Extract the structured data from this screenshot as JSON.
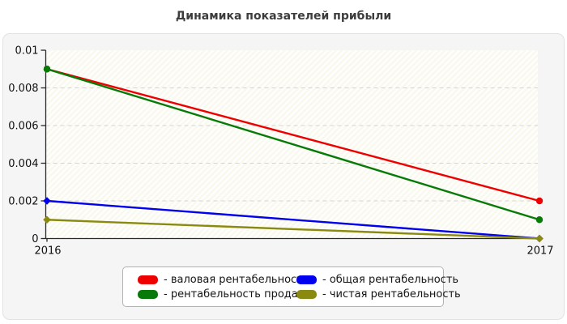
{
  "title": "Динамика показателей прибыли",
  "chart_data": {
    "type": "line",
    "title": "Динамика показателей прибыли",
    "x": [
      "2016",
      "2017"
    ],
    "xlabel": "",
    "ylabel": "",
    "ylim": [
      0,
      0.01
    ],
    "yticks": [
      0,
      0.002,
      0.004,
      0.006,
      0.008,
      0.01
    ],
    "ytick_labels": [
      "0",
      "0.002",
      "0.004",
      "0.006",
      "0.008",
      "0.01"
    ],
    "grid": "horizontal-dashed",
    "plot_background": "hatched-diagonal",
    "legend_position": "bottom-center",
    "series": [
      {
        "name": "- валовая рентабельность",
        "color": "#ee0000",
        "marker": "circle",
        "values": [
          0.009,
          0.002
        ]
      },
      {
        "name": "- общая рентабельность",
        "color": "#0000ee",
        "marker": "diamond",
        "values": [
          0.002,
          0
        ]
      },
      {
        "name": "- рентабельность продаж",
        "color": "#077a07",
        "marker": "circle",
        "values": [
          0.009,
          0.001
        ]
      },
      {
        "name": "- чистая рентабельность",
        "color": "#8a8a10",
        "marker": "diamond",
        "values": [
          0.001,
          0
        ]
      }
    ]
  }
}
